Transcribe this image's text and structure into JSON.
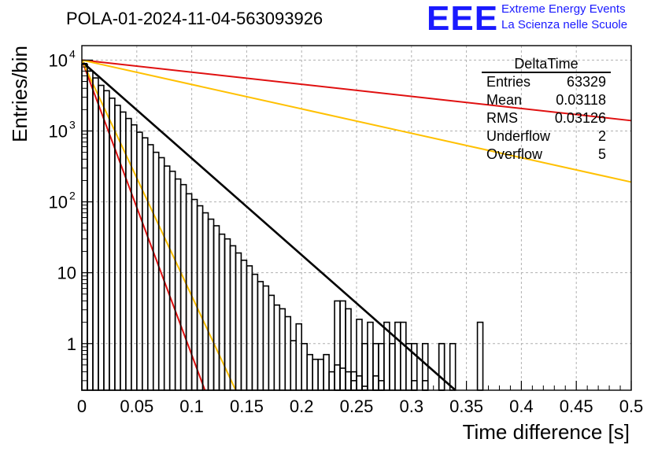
{
  "header": {
    "title": "POLA-01-2024-11-04-563093926",
    "logo_mark": "EEE",
    "logo_line1": "Extreme Energy Events",
    "logo_line2": "La Scienza nelle Scuole"
  },
  "stats_box": {
    "name": "DeltaTime",
    "rows": [
      {
        "label": "Entries",
        "value": "63329"
      },
      {
        "label": "Mean",
        "value": "0.03118"
      },
      {
        "label": "RMS",
        "value": "0.03126"
      },
      {
        "label": "Underflow",
        "value": "2"
      },
      {
        "label": "Overflow",
        "value": "5"
      }
    ]
  },
  "colors": {
    "histogram": "#000000",
    "fit_main": "#000000",
    "curve_red": "#e01010",
    "curve_yellow": "#ffc000",
    "grid": "#b0b0b0"
  },
  "chart_data": {
    "type": "histogram",
    "xlabel": "Time difference [s]",
    "ylabel": "Entries/bin",
    "xlim": [
      0,
      0.5
    ],
    "ylim": [
      0.22,
      16000
    ],
    "yscale": "log",
    "grid": true,
    "xticks": [
      0,
      0.05,
      0.1,
      0.15,
      0.2,
      0.25,
      0.3,
      0.35,
      0.4,
      0.45,
      0.5
    ],
    "xtick_labels": [
      "0",
      "0.05",
      "0.1",
      "0.15",
      "0.2",
      "0.25",
      "0.3",
      "0.35",
      "0.4",
      "0.45",
      "0.5"
    ],
    "yticks": [
      {
        "value": 1,
        "label": "1"
      },
      {
        "value": 10,
        "label": "10"
      },
      {
        "value": 100,
        "label": "10",
        "exp": "2"
      },
      {
        "value": 1000,
        "label": "10",
        "exp": "3"
      },
      {
        "value": 10000,
        "label": "10",
        "exp": "4"
      }
    ],
    "bin_width": 0.005,
    "bins": [
      {
        "x": 0.0,
        "y": 8700
      },
      {
        "x": 0.005,
        "y": 7000
      },
      {
        "x": 0.01,
        "y": 5600
      },
      {
        "x": 0.015,
        "y": 4400
      },
      {
        "x": 0.02,
        "y": 3700
      },
      {
        "x": 0.025,
        "y": 2900
      },
      {
        "x": 0.03,
        "y": 2300
      },
      {
        "x": 0.035,
        "y": 1850
      },
      {
        "x": 0.04,
        "y": 1500
      },
      {
        "x": 0.045,
        "y": 1220
      },
      {
        "x": 0.05,
        "y": 960
      },
      {
        "x": 0.055,
        "y": 800
      },
      {
        "x": 0.06,
        "y": 640
      },
      {
        "x": 0.065,
        "y": 500
      },
      {
        "x": 0.07,
        "y": 420
      },
      {
        "x": 0.075,
        "y": 320
      },
      {
        "x": 0.08,
        "y": 270
      },
      {
        "x": 0.085,
        "y": 210
      },
      {
        "x": 0.09,
        "y": 175
      },
      {
        "x": 0.095,
        "y": 130
      },
      {
        "x": 0.1,
        "y": 108
      },
      {
        "x": 0.105,
        "y": 88
      },
      {
        "x": 0.11,
        "y": 70
      },
      {
        "x": 0.115,
        "y": 57
      },
      {
        "x": 0.12,
        "y": 46
      },
      {
        "x": 0.125,
        "y": 35
      },
      {
        "x": 0.13,
        "y": 30
      },
      {
        "x": 0.135,
        "y": 24
      },
      {
        "x": 0.14,
        "y": 19
      },
      {
        "x": 0.145,
        "y": 15
      },
      {
        "x": 0.15,
        "y": 12.5
      },
      {
        "x": 0.155,
        "y": 9.5
      },
      {
        "x": 0.16,
        "y": 7.5
      },
      {
        "x": 0.165,
        "y": 6.5
      },
      {
        "x": 0.17,
        "y": 4.8
      },
      {
        "x": 0.175,
        "y": 3.5
      },
      {
        "x": 0.18,
        "y": 3.1
      },
      {
        "x": 0.185,
        "y": 2.4
      },
      {
        "x": 0.19,
        "y": 1.1
      },
      {
        "x": 0.195,
        "y": 1.9
      },
      {
        "x": 0.2,
        "y": 1.0
      },
      {
        "x": 0.205,
        "y": 0.7
      },
      {
        "x": 0.21,
        "y": 0.6
      },
      {
        "x": 0.215,
        "y": 0.6
      },
      {
        "x": 0.22,
        "y": 0.7
      },
      {
        "x": 0.225,
        "y": 0.4
      },
      {
        "x": 0.23,
        "y": 0.5
      },
      {
        "x": 0.235,
        "y": 0.45
      },
      {
        "x": 0.24,
        "y": 0.4
      },
      {
        "x": 0.245,
        "y": 0.3
      },
      {
        "x": 0.25,
        "y": 0.35
      },
      {
        "x": 0.255,
        "y": 0.25
      },
      {
        "x": 0.26,
        "y": 0.2
      },
      {
        "x": 0.265,
        "y": 0.35
      },
      {
        "x": 0.27,
        "y": 0.3
      },
      {
        "x": 0.275,
        "y": 0.2
      },
      {
        "x": 0.28,
        "y": 0.2
      },
      {
        "x": 0.285,
        "y": 0.2
      },
      {
        "x": 0.29,
        "y": 0.2
      },
      {
        "x": 0.295,
        "y": 0.2
      },
      {
        "x": 0.3,
        "y": 0.3
      },
      {
        "x": 0.305,
        "y": 0.2
      },
      {
        "x": 0.31,
        "y": 0.3
      },
      {
        "x": 0.315,
        "y": 0.2
      },
      {
        "x": 0.32,
        "y": 0.2
      },
      {
        "x": 0.325,
        "y": 1
      },
      {
        "x": 0.33,
        "y": 0.2
      },
      {
        "x": 0.335,
        "y": 0.2
      },
      {
        "x": 0.34,
        "y": 0.2
      },
      {
        "x": 0.345,
        "y": 0.2
      },
      {
        "x": 0.35,
        "y": 0.2
      },
      {
        "x": 0.355,
        "y": 0.2
      },
      {
        "x": 0.36,
        "y": 0.2
      },
      {
        "x": 0.365,
        "y": 0.2
      },
      {
        "x": 0.37,
        "y": 0.2
      }
    ],
    "extra_bins": [
      {
        "x": 0.23,
        "y": 4.0
      },
      {
        "x": 0.235,
        "y": 4.0
      },
      {
        "x": 0.24,
        "y": 3.1
      },
      {
        "x": 0.245,
        "y": 0.4
      },
      {
        "x": 0.25,
        "y": 2.2
      },
      {
        "x": 0.255,
        "y": 1.0
      },
      {
        "x": 0.26,
        "y": 2.0
      },
      {
        "x": 0.265,
        "y": 1.0
      },
      {
        "x": 0.27,
        "y": 1.0
      },
      {
        "x": 0.275,
        "y": 2.0
      },
      {
        "x": 0.28,
        "y": 1.0
      },
      {
        "x": 0.285,
        "y": 2.0
      },
      {
        "x": 0.29,
        "y": 2.0
      },
      {
        "x": 0.295,
        "y": 1.0
      },
      {
        "x": 0.3,
        "y": 1.0
      },
      {
        "x": 0.31,
        "y": 1.0
      },
      {
        "x": 0.325,
        "y": 1.0
      },
      {
        "x": 0.335,
        "y": 1.0
      },
      {
        "x": 0.36,
        "y": 2.0
      },
      {
        "x": 0.37,
        "y": 0.2
      }
    ],
    "series": [
      {
        "color": "#000000",
        "x": [
          0,
          0.34
        ],
        "y": [
          9500,
          0.2
        ]
      },
      {
        "color": "#e01010",
        "x": [
          0,
          0.5
        ],
        "y": [
          10000,
          1400
        ]
      },
      {
        "color": "#ffc000",
        "x": [
          0,
          0.5
        ],
        "y": [
          10000,
          190
        ]
      },
      {
        "color": "#e01010",
        "x": [
          0,
          0.112
        ],
        "y": [
          10000,
          0.2
        ]
      },
      {
        "color": "#ffc000",
        "x": [
          0,
          0.14
        ],
        "y": [
          10000,
          0.2
        ]
      }
    ]
  }
}
